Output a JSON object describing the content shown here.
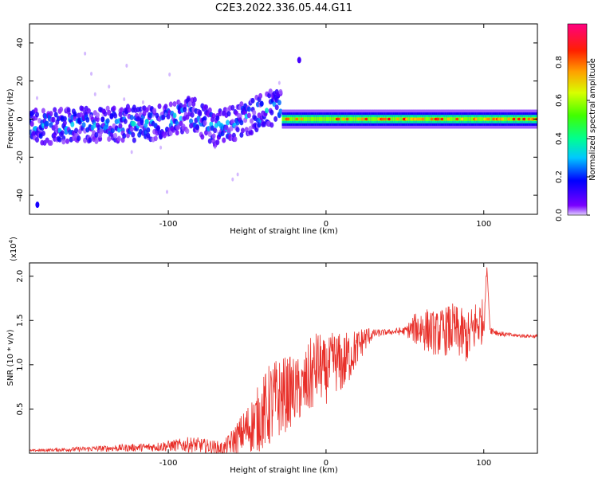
{
  "title": "C2E3.2022.336.05.44.G11",
  "chart_data": [
    {
      "type": "heatmap",
      "xlabel": "Height of straight line (km)",
      "ylabel": "Frequency (Hz)",
      "xlim": [
        -188,
        134
      ],
      "ylim": [
        -50,
        50
      ],
      "x_ticks": [
        -100,
        0,
        100
      ],
      "y_ticks": [
        -40,
        -20,
        0,
        20,
        40
      ],
      "grid": false,
      "colorbar": {
        "label": "Normalized spectral amplitude",
        "range": [
          0,
          1
        ],
        "ticks": [
          "0.0",
          "0.2",
          "0.4",
          "0.6",
          "0.8"
        ],
        "colormap": [
          "#c8a8ff",
          "#6a00ff",
          "#0000ff",
          "#00c8ff",
          "#00ff80",
          "#40ff00",
          "#ffff00",
          "#ff9000",
          "#ff0000",
          "#ff0080"
        ]
      },
      "bands": [
        {
          "x_start": -188,
          "x_end": -28,
          "center_hz": [
            [
              -188,
              -4
            ],
            [
              -150,
              -3
            ],
            [
              -110,
              -2
            ],
            [
              -85,
              3
            ],
            [
              -70,
              -5
            ],
            [
              -55,
              -1
            ],
            [
              -40,
              4
            ],
            [
              -28,
              8
            ]
          ],
          "halfwidth_hz": 9,
          "peak_amplitude": 0.35
        },
        {
          "x_start": -28,
          "x_end": 134,
          "center_hz": 0,
          "halfwidth_hz": 3,
          "peak_amplitude": 0.9
        }
      ],
      "features": [
        {
          "x": -17,
          "y": 31,
          "amplitude": 0.15
        },
        {
          "x": -183,
          "y": -45,
          "amplitude": 0.2
        }
      ]
    },
    {
      "type": "line",
      "xlabel": "Height of straight line (km)",
      "ylabel": "SNR (10 * v/v)",
      "y_scale_label": "(x10",
      "y_scale_exp": "4",
      "y_scale_suffix": ")",
      "xlim": [
        -188,
        134
      ],
      "ylim": [
        0,
        2.15
      ],
      "x_ticks": [
        -100,
        0,
        100
      ],
      "y_ticks": [
        "0.5",
        "1.0",
        "1.5",
        "2.0"
      ],
      "grid": false,
      "series": [
        {
          "color": "#e8302a",
          "x": [
            -188,
            -170,
            -150,
            -130,
            -110,
            -95,
            -85,
            -75,
            -65,
            -55,
            -45,
            -35,
            -28,
            -22,
            -15,
            -10,
            -5,
            0,
            5,
            10,
            15,
            20,
            25,
            30,
            40,
            50,
            55,
            60,
            70,
            80,
            90,
            95,
            100,
            102,
            104,
            110,
            120,
            134
          ],
          "y": [
            0.03,
            0.04,
            0.05,
            0.06,
            0.07,
            0.09,
            0.1,
            0.08,
            0.05,
            0.2,
            0.35,
            0.55,
            0.65,
            0.7,
            0.72,
            0.85,
            1.0,
            0.9,
            1.05,
            1.0,
            1.1,
            1.2,
            1.3,
            1.35,
            1.37,
            1.38,
            1.4,
            1.42,
            1.35,
            1.4,
            1.3,
            1.45,
            1.5,
            2.1,
            1.4,
            1.35,
            1.33,
            1.32
          ],
          "noise": [
            0.01,
            0.02,
            0.03,
            0.04,
            0.05,
            0.07,
            0.09,
            0.08,
            0.08,
            0.2,
            0.35,
            0.5,
            0.45,
            0.4,
            0.35,
            0.45,
            0.4,
            0.35,
            0.35,
            0.35,
            0.3,
            0.2,
            0.15,
            0.05,
            0.03,
            0.05,
            0.15,
            0.25,
            0.25,
            0.3,
            0.3,
            0.3,
            0.25,
            0.0,
            0.05,
            0.03,
            0.02,
            0.02
          ]
        }
      ]
    }
  ]
}
